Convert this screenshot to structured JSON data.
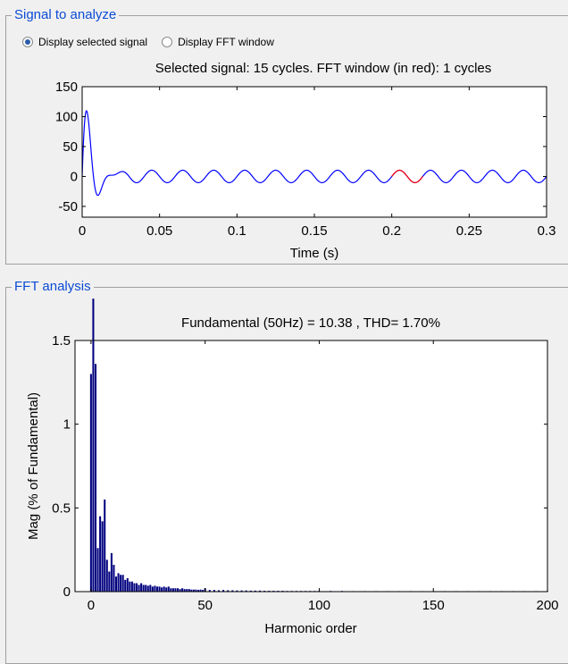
{
  "signal_panel": {
    "title": "Signal to analyze",
    "radio_display_signal": "Display selected signal",
    "radio_display_fft": "Display FFT window",
    "selected_option": "Display selected signal"
  },
  "fft_panel": {
    "title": "FFT analysis"
  },
  "colors": {
    "signal": "#0000ff",
    "fft_window": "#ff0000",
    "bars": "#00007f",
    "panel_title": "#0b4bd5"
  },
  "chart_data": [
    {
      "type": "line",
      "title": "Selected signal: 15 cycles. FFT window (in red): 1 cycles",
      "xlabel": "Time (s)",
      "ylabel": "",
      "xlim": [
        0,
        0.3
      ],
      "ylim": [
        -68,
        150
      ],
      "xticks": [
        "0",
        "0.05",
        "0.1",
        "0.15",
        "0.2",
        "0.25",
        "0.3"
      ],
      "yticks": [
        "-50",
        "0",
        "50",
        "100",
        "150"
      ],
      "grid": false,
      "series": [
        {
          "color": "#0000ff",
          "model": "10.38*sin(2π·50·t) + 170*exp(-t/0.006)*sin(2π·72·t)",
          "x_range": [
            0,
            0.3
          ]
        },
        {
          "color": "#ff0000",
          "model": "same signal, FFT window",
          "x_range": [
            0.2,
            0.22
          ]
        }
      ]
    },
    {
      "type": "bar",
      "title": "Fundamental (50Hz) = 10.38 , THD= 1.70%",
      "xlabel": "Harmonic order",
      "ylabel": "Mag (% of Fundamental)",
      "xlim": [
        -7,
        200
      ],
      "ylim": [
        0,
        1.5
      ],
      "xticks": [
        "0",
        "50",
        "100",
        "150",
        "200"
      ],
      "yticks": [
        "0",
        "0.5",
        "1",
        "1.5"
      ],
      "grid": false,
      "x": [
        0,
        1,
        2,
        3,
        4,
        5,
        6,
        7,
        8,
        9,
        10,
        11,
        12,
        13,
        14,
        15,
        16,
        17,
        18,
        19,
        20,
        21,
        22,
        23,
        24,
        25,
        26,
        27,
        28,
        29,
        30,
        31,
        32,
        33,
        34,
        35,
        36,
        37,
        38,
        39,
        40,
        41,
        42,
        43,
        44,
        45,
        46,
        47,
        48,
        49,
        50,
        52,
        54,
        56,
        58,
        60,
        62,
        64,
        66,
        68,
        70,
        72,
        74,
        76,
        78,
        80,
        82,
        84,
        86,
        88,
        90,
        92,
        94,
        96,
        98,
        100,
        105,
        110,
        115,
        120,
        125,
        130,
        135,
        140,
        145,
        150,
        155,
        160,
        165,
        170,
        175,
        180,
        185,
        190,
        195,
        200
      ],
      "values": [
        1.3,
        1.75,
        1.36,
        0.26,
        0.45,
        0.42,
        0.55,
        0.19,
        0.12,
        0.23,
        0.16,
        0.09,
        0.11,
        0.1,
        0.1,
        0.07,
        0.08,
        0.06,
        0.06,
        0.05,
        0.05,
        0.04,
        0.05,
        0.04,
        0.04,
        0.035,
        0.04,
        0.03,
        0.035,
        0.03,
        0.03,
        0.025,
        0.03,
        0.025,
        0.03,
        0.02,
        0.02,
        0.02,
        0.02,
        0.015,
        0.02,
        0.015,
        0.015,
        0.015,
        0.012,
        0.012,
        0.012,
        0.01,
        0.012,
        0.01,
        0.02,
        0.01,
        0.01,
        0.008,
        0.01,
        0.008,
        0.008,
        0.007,
        0.007,
        0.007,
        0.006,
        0.006,
        0.006,
        0.005,
        0.005,
        0.005,
        0.005,
        0.005,
        0.004,
        0.004,
        0.004,
        0.004,
        0.004,
        0.004,
        0.004,
        0.004,
        0.004,
        0.004,
        0.003,
        0.003,
        0.003,
        0.003,
        0.003,
        0.003,
        0.003,
        0.003,
        0.003,
        0.003,
        0.003,
        0.003,
        0.003,
        0.003,
        0.003,
        0.003,
        0.003,
        0.003
      ]
    }
  ]
}
